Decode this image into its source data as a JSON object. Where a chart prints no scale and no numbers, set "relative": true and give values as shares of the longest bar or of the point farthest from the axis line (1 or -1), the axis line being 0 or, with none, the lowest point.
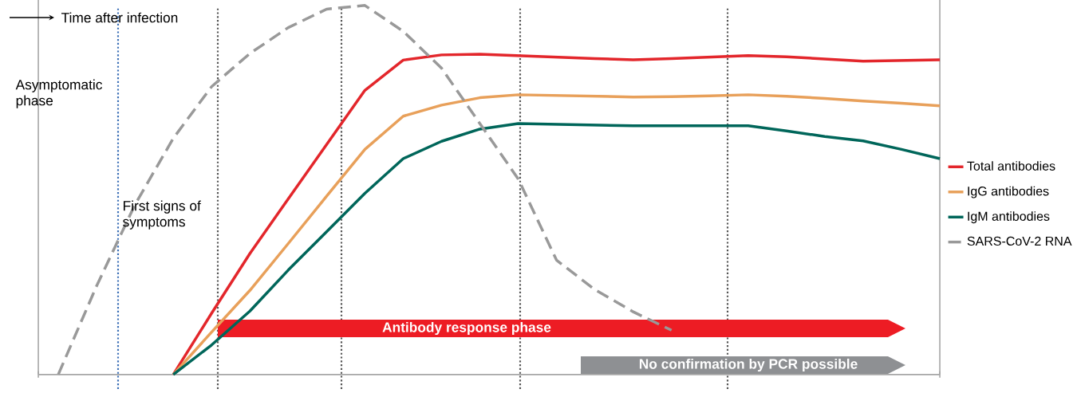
{
  "chart_data": {
    "type": "line",
    "relative": true,
    "legend": "right",
    "marker": "none",
    "categories": [
      null,
      null,
      null,
      null,
      null,
      null,
      null,
      null,
      null,
      null,
      null,
      null,
      null,
      null,
      null,
      null,
      null,
      null,
      null,
      null,
      null,
      null,
      null,
      null
    ],
    "series": [
      {
        "name": "Total antibodies",
        "color": "#e3262b",
        "line_style": "solid",
        "values": [
          null,
          null,
          null,
          0,
          0.166,
          0.328,
          0.476,
          0.623,
          0.77,
          0.852,
          0.866,
          0.868,
          0.864,
          0.86,
          0.856,
          0.853,
          0.856,
          0.86,
          0.864,
          0.861,
          0.855,
          0.849,
          0.851,
          0.853
        ]
      },
      {
        "name": "IgG antibodies",
        "color": "#e8a05a",
        "line_style": "solid",
        "values": [
          null,
          null,
          null,
          0,
          0.115,
          0.228,
          0.355,
          0.483,
          0.61,
          0.7,
          0.73,
          0.75,
          0.758,
          0.756,
          0.754,
          0.752,
          0.753,
          0.755,
          0.758,
          0.754,
          0.748,
          0.741,
          0.735,
          0.728
        ]
      },
      {
        "name": "IgM antibodies",
        "color": "#00665a",
        "line_style": "solid",
        "values": [
          null,
          null,
          null,
          0,
          0.08,
          0.172,
          0.283,
          0.387,
          0.491,
          0.585,
          0.632,
          0.665,
          0.68,
          0.678,
          0.676,
          0.674,
          0.674,
          0.674,
          0.674,
          0.66,
          0.645,
          0.633,
          0.61,
          0.585
        ]
      },
      {
        "name": "SARS-CoV-2 RNA",
        "color": "#999999",
        "line_style": "dashed",
        "values": [
          0,
          0.24,
          0.46,
          0.64,
          0.78,
          0.87,
          0.94,
          0.99,
          1.0,
          0.93,
          0.83,
          0.68,
          0.53,
          0.31,
          0.23,
          0.17,
          0.12,
          null,
          null,
          null,
          null,
          null,
          null,
          null
        ]
      }
    ],
    "annotations": [
      "Time after infection",
      "Asymptomatic phase",
      "First signs of symptoms",
      "Antibody response phase",
      "No confirmation by PCR possible"
    ]
  }
}
